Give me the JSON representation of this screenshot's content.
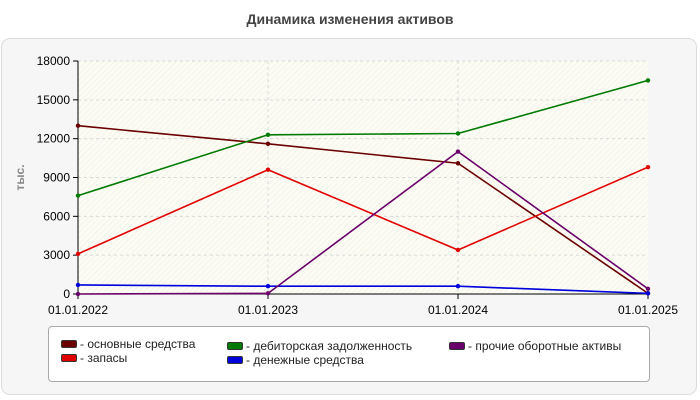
{
  "chart_data": {
    "type": "line",
    "title": "Динамика изменения активов",
    "ylabel": "тыс.",
    "xlabel": "",
    "x": [
      "01.01.2022",
      "01.01.2023",
      "01.01.2024",
      "01.01.2025"
    ],
    "ylim": [
      0,
      18000
    ],
    "yticks": [
      0,
      3000,
      6000,
      9000,
      12000,
      15000,
      18000
    ],
    "grid": true,
    "legend_position": "bottom",
    "series": [
      {
        "name": "- основные средства",
        "color": "#6b0000",
        "values": [
          13000,
          11600,
          10100,
          50
        ]
      },
      {
        "name": "- запасы",
        "color": "#e00000",
        "values": [
          3100,
          9600,
          3400,
          9800
        ]
      },
      {
        "name": "- дебиторская задолженность",
        "color": "#007a00",
        "values": [
          7600,
          12300,
          12400,
          16500
        ]
      },
      {
        "name": "- денежные средства",
        "color": "#0000dd",
        "values": [
          700,
          600,
          600,
          50
        ]
      },
      {
        "name": "- прочие оборотные активы",
        "color": "#6a006a",
        "values": [
          0,
          50,
          11000,
          400
        ]
      }
    ]
  }
}
